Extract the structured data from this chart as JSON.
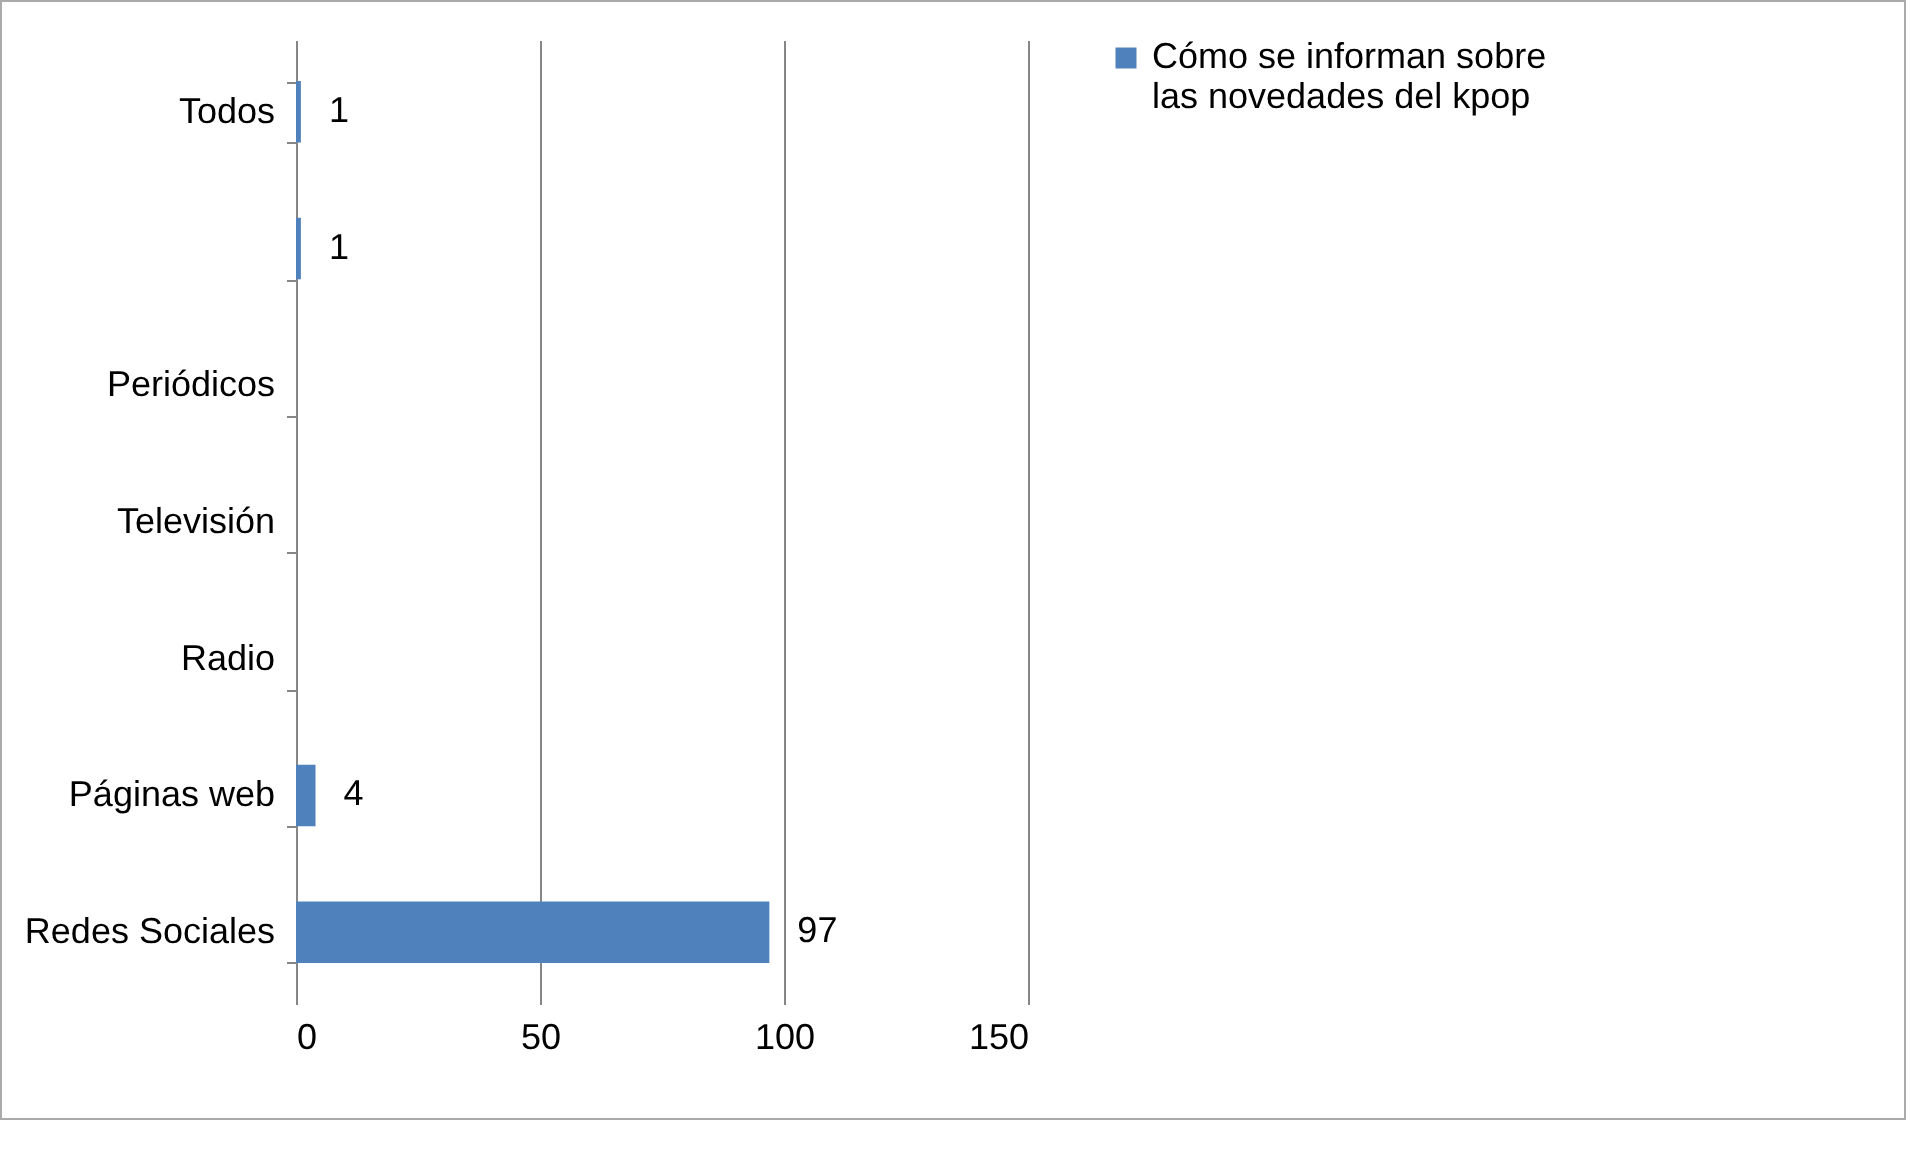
{
  "chart_data": {
    "type": "bar",
    "orientation": "horizontal",
    "categories": [
      "Todos",
      null,
      "Periódicos",
      "Televisión",
      "Radio",
      "Páginas web",
      "Redes Sociales"
    ],
    "series": [
      {
        "name": "Cómo se informan sobre las novedades del kpop",
        "color": "#4f81bd",
        "values": [
          1,
          1,
          null,
          null,
          null,
          4,
          97
        ],
        "value_labels": [
          "1",
          "1",
          null,
          null,
          null,
          "4",
          "97"
        ]
      }
    ],
    "xlim": [
      0,
      150
    ],
    "xticks": [
      0,
      50,
      100,
      150
    ],
    "grid": "x",
    "legend": "right"
  }
}
